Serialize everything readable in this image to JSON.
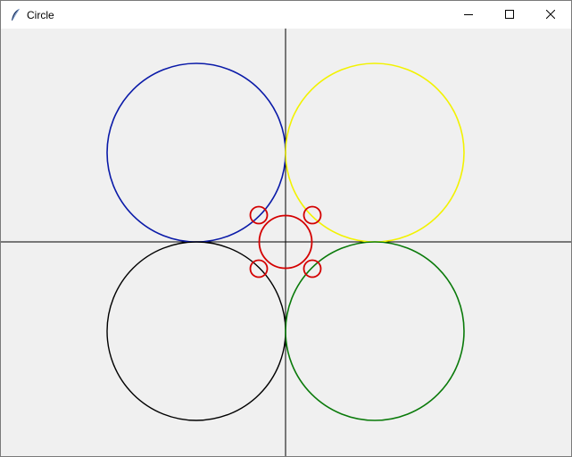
{
  "window": {
    "title": "Circle",
    "icon": "feather-icon",
    "controls": [
      "minimize-icon",
      "maximize-icon",
      "close-icon"
    ]
  },
  "canvas": {
    "background": "#f0f0f0",
    "axis_color": "#000000",
    "circles": [
      {
        "name": "circle-blue-top-left",
        "color": "#0a1aa8"
      },
      {
        "name": "circle-yellow-top-right",
        "color": "#f2f200"
      },
      {
        "name": "circle-black-bottom-left",
        "color": "#000000"
      },
      {
        "name": "circle-green-bottom-right",
        "color": "#0a7a0a"
      },
      {
        "name": "circle-red-center",
        "color": "#d40000"
      },
      {
        "name": "circle-red-small-top-left",
        "color": "#d40000"
      },
      {
        "name": "circle-red-small-top-right",
        "color": "#d40000"
      },
      {
        "name": "circle-red-small-bottom-left",
        "color": "#d40000"
      },
      {
        "name": "circle-red-small-bottom-right",
        "color": "#d40000"
      }
    ]
  }
}
